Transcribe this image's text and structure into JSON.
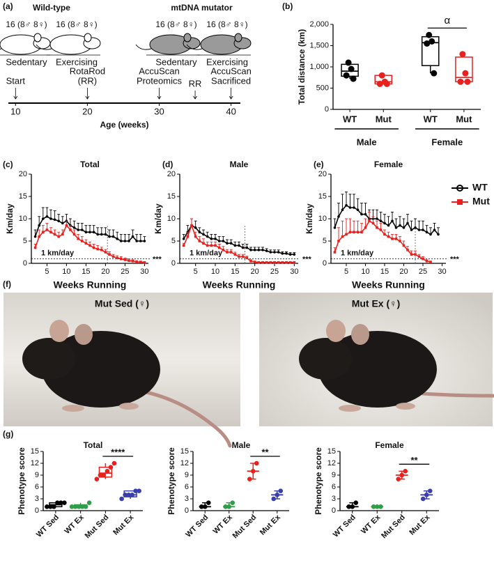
{
  "panel_a": {
    "label": "(a)",
    "groups": [
      {
        "title": "Wild-type",
        "rats": [
          {
            "count": "16 (8♂  8♀)",
            "label": "Sedentary"
          },
          {
            "count": "16 (8♂  8♀)",
            "label": "Exercising"
          }
        ]
      },
      {
        "title": "mtDNA mutator",
        "rats": [
          {
            "count": "16 (8♂  8♀)",
            "label": "Sedentary"
          },
          {
            "count": "16 (8♂  8♀)",
            "label": "Exercising"
          }
        ]
      }
    ],
    "timeline": {
      "xlim": [
        9,
        41.3
      ],
      "xticks": [
        10,
        20,
        30,
        40
      ],
      "xlabel": "Age (weeks)",
      "events": [
        {
          "at": 10,
          "lines": [
            "Start"
          ]
        },
        {
          "at": 20,
          "lines": [
            "RotaRod",
            "(RR)"
          ]
        },
        {
          "at": 30,
          "lines": [
            "AccuScan",
            "Proteomics"
          ]
        },
        {
          "at": 35,
          "lines": [
            "RR"
          ]
        },
        {
          "at": 40,
          "lines": [
            "AccuScan",
            "Sacrificed"
          ]
        }
      ]
    }
  },
  "panel_f": {
    "label": "(f)",
    "photos": [
      {
        "caption": "Mut Sed (♀)"
      },
      {
        "caption": "Mut Ex (♀)"
      }
    ]
  },
  "chart_data": [
    {
      "type": "box",
      "label": "(b)",
      "ylabel": "Total distance (km)",
      "categories": [
        "WT",
        "Mut",
        "WT",
        "Mut"
      ],
      "groups": [
        "Male",
        "Female"
      ],
      "colors": [
        "#000000",
        "#e8201e",
        "#000000",
        "#e8201e"
      ],
      "points": [
        [
          1100,
          950,
          800,
          720
        ],
        [
          800,
          650,
          600,
          600
        ],
        [
          1750,
          1600,
          1550,
          850
        ],
        [
          1300,
          850,
          650,
          650
        ]
      ],
      "boxes": [
        {
          "min": 720,
          "q1": 780,
          "median": 900,
          "q3": 1060,
          "max": 1100
        },
        {
          "min": 600,
          "q1": 600,
          "median": 650,
          "q3": 800,
          "max": 800
        },
        {
          "min": 850,
          "q1": 1030,
          "median": 1570,
          "q3": 1710,
          "max": 1750
        },
        {
          "min": 650,
          "q1": 650,
          "median": 750,
          "q3": 1230,
          "max": 1300
        }
      ],
      "significance": "α",
      "ylim": [
        0,
        2000
      ],
      "yticks": [
        0,
        500,
        {
          "value": 1000,
          "label": "1,000"
        },
        {
          "value": 1500,
          "label": "1,500"
        },
        {
          "value": 2000,
          "label": "2,000"
        }
      ]
    },
    {
      "type": "line",
      "label": "(c)",
      "title": "Total",
      "xlabel": "Weeks Running",
      "ylabel": "Km/day",
      "x": [
        2,
        3,
        4,
        5,
        6,
        7,
        8,
        9,
        10,
        11,
        12,
        13,
        14,
        15,
        16,
        17,
        18,
        19,
        20,
        21,
        22,
        23,
        24,
        25,
        26,
        27,
        28,
        29,
        30
      ],
      "series": [
        {
          "color": "#000000",
          "marker": "circle",
          "values": [
            6,
            8.5,
            10,
            10.5,
            10,
            9.8,
            9.5,
            9,
            9.5,
            8.5,
            8,
            7.5,
            7.5,
            7,
            7,
            7,
            6.5,
            6.5,
            6.5,
            6,
            6,
            5.5,
            5,
            5,
            5,
            6,
            5,
            5,
            5
          ],
          "errors": [
            1.5,
            2,
            2.5,
            2,
            2,
            2,
            1.5,
            1.5,
            1.5,
            1.5,
            1.5,
            1.5,
            1.5,
            1.5,
            1.5,
            1.5,
            1.5,
            1.5,
            1.5,
            1.5,
            1.5,
            1.5,
            1.5,
            1.5,
            1.5,
            1.5,
            1.5,
            1.5,
            1
          ]
        },
        {
          "color": "#e8201e",
          "marker": "square",
          "values": [
            3.5,
            6,
            7,
            7.5,
            7,
            6.5,
            6,
            6.5,
            8.5,
            7.5,
            6.5,
            5.5,
            5,
            4.5,
            4,
            3.5,
            3.2,
            3,
            2.5,
            2,
            1.5,
            1.2,
            1,
            0.8,
            0.6,
            0.5,
            0.3,
            0.3,
            0.2
          ],
          "errors": [
            0.8,
            1.5,
            1.5,
            1.5,
            1,
            1,
            1,
            1,
            1,
            1,
            1,
            1,
            1,
            0.8,
            0.8,
            0.8,
            0.8,
            0.6,
            0.6,
            0.6,
            0.5,
            0.5,
            0.5,
            0.4,
            0.4,
            0.3,
            0.3,
            0.2,
            0.2
          ]
        }
      ],
      "hline": {
        "value": 1,
        "label": "1 km/day"
      },
      "vline": 20.5,
      "significance": "***",
      "xlim": [
        1,
        31
      ],
      "xticks": [
        5,
        10,
        15,
        20,
        25,
        30
      ],
      "ylim": [
        0,
        20
      ],
      "yticks": [
        0,
        5,
        10,
        15,
        20
      ]
    },
    {
      "type": "line",
      "label": "(d)",
      "title": "Male",
      "xlabel": "Weeks Running",
      "ylabel": "Km/day",
      "x": [
        2,
        3,
        4,
        5,
        6,
        7,
        8,
        9,
        10,
        11,
        12,
        13,
        14,
        15,
        16,
        17,
        18,
        19,
        20,
        21,
        22,
        23,
        24,
        25,
        26,
        27,
        28,
        29,
        30
      ],
      "series": [
        {
          "color": "#000000",
          "marker": "circle",
          "values": [
            5.5,
            7,
            8.5,
            8,
            7,
            6.5,
            6,
            5.5,
            5.5,
            5,
            5,
            4.5,
            4.5,
            4,
            4,
            3.5,
            3.5,
            3,
            3,
            3,
            3,
            2.8,
            2.5,
            2.5,
            2.5,
            2.2,
            2.2,
            2,
            2
          ],
          "errors": [
            1,
            1.5,
            1.5,
            1.5,
            1,
            1,
            1,
            1,
            1,
            1,
            1,
            0.8,
            0.8,
            0.8,
            0.8,
            0.8,
            0.8,
            0.6,
            0.6,
            0.6,
            0.6,
            0.5,
            0.5,
            0.5,
            0.5,
            0.4,
            0.4,
            0.4,
            0.4
          ]
        },
        {
          "color": "#e8201e",
          "marker": "square",
          "values": [
            4,
            6,
            8.5,
            6,
            5,
            4.5,
            4,
            4,
            4,
            3.5,
            3,
            2.5,
            2.5,
            2,
            1.5,
            1.5,
            1.2,
            0.5,
            0.3,
            0.2,
            0.2,
            0.2,
            0.2,
            0.2,
            0.2,
            0.2,
            0.2,
            0.2,
            0.2
          ],
          "errors": [
            0.5,
            1,
            1.5,
            1,
            1,
            1,
            0.8,
            0.8,
            0.8,
            0.8,
            0.8,
            0.6,
            0.6,
            0.5,
            0.5,
            0.5,
            0.4,
            0.3,
            0.2,
            0.2,
            0.2,
            0.2,
            0.2,
            0.2,
            0.2,
            0.2,
            0.2,
            0.2,
            0.2
          ]
        }
      ],
      "hline": {
        "value": 1,
        "label": "1 km/day"
      },
      "vline": 17.5,
      "significance": "***",
      "xlim": [
        1,
        31
      ],
      "xticks": [
        5,
        10,
        15,
        20,
        25,
        30
      ],
      "ylim": [
        0,
        20
      ],
      "yticks": [
        0,
        5,
        10,
        15,
        20
      ]
    },
    {
      "type": "line",
      "label": "(e)",
      "title": "Female",
      "xlabel": "Weeks Running",
      "ylabel": "Km/day",
      "x": [
        2,
        3,
        4,
        5,
        6,
        7,
        8,
        9,
        10,
        11,
        12,
        13,
        14,
        15,
        16,
        17,
        18,
        19,
        20,
        21,
        22,
        23,
        24,
        25,
        26,
        27,
        28,
        29,
        30
      ],
      "series": [
        {
          "name": "WT",
          "color": "#000000",
          "marker": "circle",
          "values": [
            8,
            10.5,
            12,
            13,
            12.5,
            12.5,
            12,
            11,
            11,
            10,
            10,
            10,
            9.5,
            9,
            8.5,
            9.5,
            8,
            8.5,
            8,
            9,
            7.5,
            8,
            7.5,
            7.5,
            7,
            6.5,
            7.5,
            6.5,
            null
          ],
          "errors": [
            2,
            3,
            3.5,
            3,
            3,
            3,
            2.5,
            2.5,
            2.5,
            2,
            2,
            2,
            2,
            2,
            2,
            2,
            2,
            2,
            2,
            2,
            2,
            2,
            2,
            2,
            1.5,
            1.5,
            1.5,
            1.5,
            null
          ]
        },
        {
          "name": "Mut",
          "color": "#e8201e",
          "marker": "square",
          "values": [
            2.5,
            5,
            6,
            6.5,
            7,
            7,
            7,
            7,
            8,
            9.5,
            9,
            8,
            7.5,
            6.5,
            6,
            5.5,
            5.5,
            5,
            4,
            3,
            2,
            2,
            1.5,
            1,
            0.5,
            0.3,
            null,
            null,
            null
          ],
          "errors": [
            1,
            3,
            3.5,
            3.5,
            3,
            2.5,
            2.5,
            2,
            2,
            2,
            1.5,
            1.5,
            1.5,
            1,
            1,
            1,
            1,
            1,
            1,
            0.8,
            0.8,
            0.8,
            0.5,
            0.5,
            0.3,
            0.2,
            null,
            null,
            null
          ]
        }
      ],
      "legend": "right",
      "hline": {
        "value": 1,
        "label": "1 km/day"
      },
      "vline": 23,
      "significance": "***",
      "xlim": [
        1,
        31
      ],
      "xticks": [
        5,
        10,
        15,
        20,
        25,
        30
      ],
      "ylim": [
        0,
        20
      ],
      "yticks": [
        0,
        5,
        10,
        15,
        20
      ]
    },
    {
      "type": "box",
      "label": "(g)",
      "title": "Total",
      "ylabel": "Phenotype score",
      "categories": [
        "WT Sed",
        "WT Ex",
        "Mut Sed",
        "Mut Ex"
      ],
      "colors": [
        "#000000",
        "#2e9e48",
        "#e8201e",
        "#3a3fae"
      ],
      "points": [
        [
          1,
          1,
          1,
          2,
          2,
          2
        ],
        [
          1,
          1,
          1,
          1,
          1,
          2
        ],
        [
          8,
          9,
          9,
          10,
          11,
          12
        ],
        [
          3,
          4,
          4,
          4,
          5,
          5
        ]
      ],
      "boxes": [
        {
          "min": 1,
          "q1": 1,
          "median": 1.5,
          "q3": 2,
          "max": 2
        },
        {
          "min": 1,
          "q1": 1,
          "median": 1,
          "q3": 1.5,
          "max": 2
        },
        {
          "min": 8,
          "q1": 8.5,
          "median": 9.5,
          "q3": 11,
          "max": 12
        },
        {
          "min": 3,
          "q1": 3.5,
          "median": 4,
          "q3": 5,
          "max": 5
        }
      ],
      "significance": "****",
      "ylim": [
        0,
        15
      ],
      "yticks": [
        0,
        3,
        6,
        9,
        12,
        15
      ]
    },
    {
      "type": "box",
      "label": "",
      "title": "Male",
      "ylabel": "Phenotype score",
      "categories": [
        "WT Sed",
        "WT Ex",
        "Mut Sed",
        "Mut Ex"
      ],
      "colors": [
        "#000000",
        "#2e9e48",
        "#e8201e",
        "#3a3fae"
      ],
      "points": [
        [
          1,
          1,
          2
        ],
        [
          1,
          1,
          2
        ],
        [
          8,
          10,
          12
        ],
        [
          3,
          4,
          5
        ]
      ],
      "boxes": [
        {
          "min": 1,
          "median": 1,
          "max": 2
        },
        {
          "min": 1,
          "median": 1,
          "max": 2
        },
        {
          "min": 8,
          "median": 10,
          "max": 12
        },
        {
          "min": 3,
          "median": 4,
          "max": 5
        }
      ],
      "significance": "**",
      "ylim": [
        0,
        15
      ],
      "yticks": [
        0,
        3,
        6,
        9,
        12,
        15
      ]
    },
    {
      "type": "box",
      "label": "",
      "title": "Female",
      "ylabel": "Phenotype score",
      "categories": [
        "WT Sed",
        "WT Ex",
        "Mut Sed",
        "Mut Ex"
      ],
      "colors": [
        "#000000",
        "#2e9e48",
        "#e8201e",
        "#3a3fae"
      ],
      "points": [
        [
          1,
          1,
          2
        ],
        [
          1,
          1,
          1
        ],
        [
          8,
          9,
          10
        ],
        [
          3,
          4,
          5
        ]
      ],
      "boxes": [
        {
          "min": 1,
          "median": 1,
          "max": 2
        },
        {
          "min": 1,
          "median": 1,
          "max": 1
        },
        {
          "min": 8,
          "median": 9,
          "max": 10
        },
        {
          "min": 3,
          "median": 4,
          "max": 5
        }
      ],
      "significance": "**",
      "ylim": [
        0,
        15
      ],
      "yticks": [
        0,
        3,
        6,
        9,
        12,
        15
      ]
    }
  ]
}
